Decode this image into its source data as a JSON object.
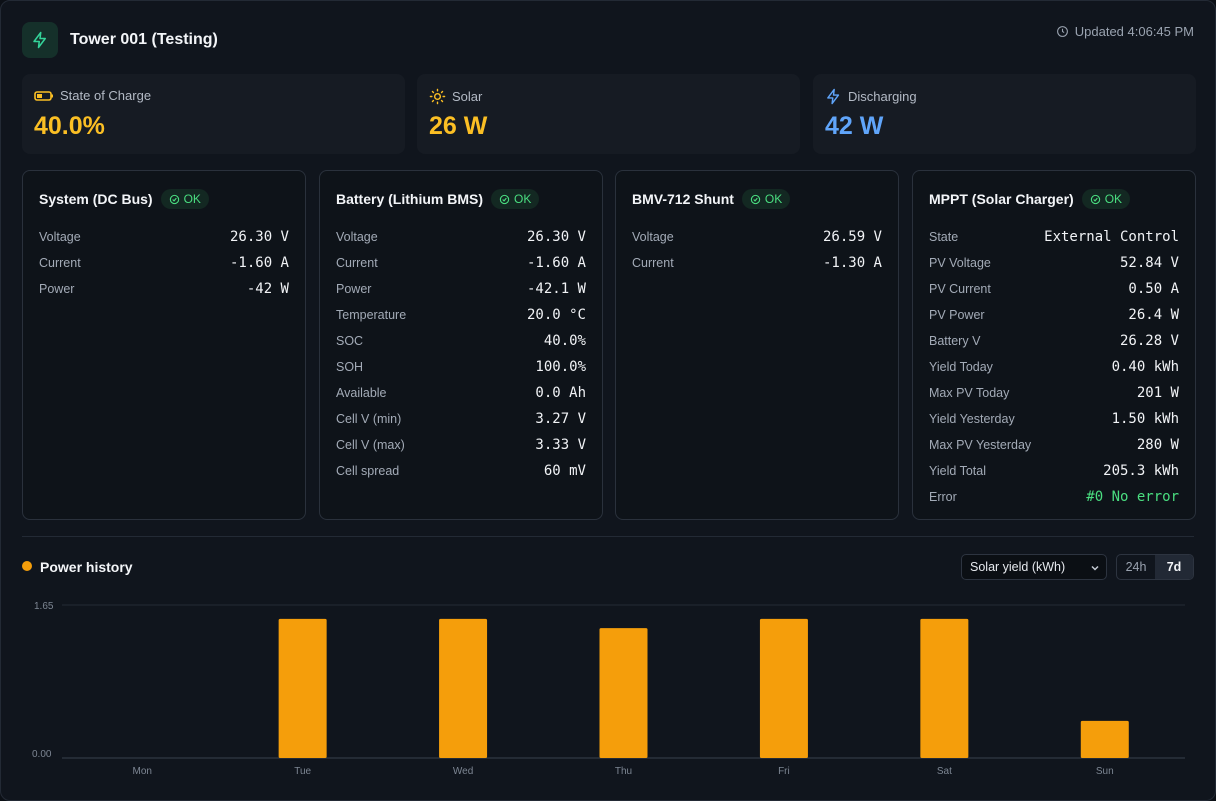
{
  "header": {
    "title": "Tower 001 (Testing)",
    "updated": "Updated 4:06:45 PM"
  },
  "stats": [
    {
      "label": "State of Charge",
      "value": "40.0%",
      "icon": "battery-icon",
      "color": "#fbbf24"
    },
    {
      "label": "Solar",
      "value": "26 W",
      "icon": "sun-icon",
      "color": "#fbbf24"
    },
    {
      "label": "Discharging",
      "value": "42 W",
      "icon": "bolt-icon",
      "color": "#60a5fa"
    }
  ],
  "cards": [
    {
      "title": "System (DC Bus)",
      "status": "OK",
      "rows": [
        {
          "label": "Voltage",
          "value": "26.30 V"
        },
        {
          "label": "Current",
          "value": "-1.60 A"
        },
        {
          "label": "Power",
          "value": "-42 W"
        }
      ]
    },
    {
      "title": "Battery (Lithium BMS)",
      "status": "OK",
      "rows": [
        {
          "label": "Voltage",
          "value": "26.30 V"
        },
        {
          "label": "Current",
          "value": "-1.60 A"
        },
        {
          "label": "Power",
          "value": "-42.1 W"
        },
        {
          "label": "Temperature",
          "value": "20.0 °C"
        },
        {
          "label": "SOC",
          "value": "40.0%"
        },
        {
          "label": "SOH",
          "value": "100.0%"
        },
        {
          "label": "Available",
          "value": "0.0 Ah"
        },
        {
          "label": "Cell V (min)",
          "value": "3.27 V"
        },
        {
          "label": "Cell V (max)",
          "value": "3.33 V"
        },
        {
          "label": "Cell spread",
          "value": "60 mV"
        }
      ]
    },
    {
      "title": "BMV-712 Shunt",
      "status": "OK",
      "rows": [
        {
          "label": "Voltage",
          "value": "26.59 V"
        },
        {
          "label": "Current",
          "value": "-1.30 A"
        }
      ]
    },
    {
      "title": "MPPT (Solar Charger)",
      "status": "OK",
      "rows": [
        {
          "label": "State",
          "value": "External Control"
        },
        {
          "label": "PV Voltage",
          "value": "52.84 V"
        },
        {
          "label": "PV Current",
          "value": "0.50 A"
        },
        {
          "label": "PV Power",
          "value": "26.4 W"
        },
        {
          "label": "Battery V",
          "value": "26.28 V"
        },
        {
          "label": "Yield Today",
          "value": "0.40 kWh"
        },
        {
          "label": "Max PV Today",
          "value": "201 W"
        },
        {
          "label": "Yield Yesterday",
          "value": "1.50 kWh"
        },
        {
          "label": "Max PV Yesterday",
          "value": "280 W"
        },
        {
          "label": "Yield Total",
          "value": "205.3 kWh"
        },
        {
          "label": "Error",
          "value": "#0 No error",
          "ok": true
        }
      ]
    }
  ],
  "history": {
    "title": "Power history",
    "metric_select": "Solar yield (kWh)",
    "ranges": [
      "24h",
      "7d"
    ],
    "active_range": "7d"
  },
  "chart_data": {
    "type": "bar",
    "categories": [
      "Mon",
      "Tue",
      "Wed",
      "Thu",
      "Fri",
      "Sat",
      "Sun"
    ],
    "values": [
      0,
      1.5,
      1.5,
      1.4,
      1.5,
      1.5,
      0.4
    ],
    "ylim": [
      0,
      1.65
    ],
    "y_tick_labels": [
      "1.65",
      "0.00"
    ],
    "bar_color": "#f59e0b",
    "grid": true
  }
}
